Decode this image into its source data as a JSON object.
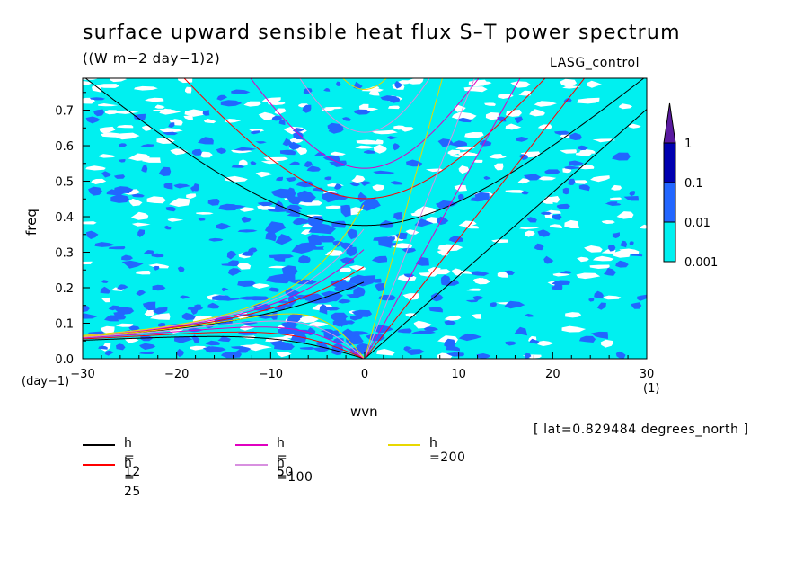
{
  "chart_data": {
    "type": "heatmap",
    "title": "surface upward sensible heat flux S–T power spectrum",
    "subtitle": "((W m−2 day−1)2)",
    "run_label": "LASG_control",
    "xlabel": "wvn",
    "ylabel": "freq",
    "x_unit": "(1)",
    "y_unit": "(day−1)",
    "xlim": [
      -30,
      30
    ],
    "ylim": [
      0,
      0.79
    ],
    "x_ticks": [
      -30,
      -20,
      -10,
      0,
      10,
      20,
      30
    ],
    "x_tick_labels": [
      "−30",
      "−20",
      "−10",
      "0",
      "10",
      "20",
      "30"
    ],
    "y_ticks": [
      0,
      0.1,
      0.2,
      0.3,
      0.4,
      0.5,
      0.6,
      0.7
    ],
    "y_tick_labels": [
      "0.0",
      "0.1",
      "0.2",
      "0.3",
      "0.4",
      "0.5",
      "0.6",
      "0.7"
    ],
    "colorbar": {
      "levels": [
        0.001,
        0.01,
        0.1,
        1
      ],
      "labels": [
        "0.001",
        "0.01",
        "0.1",
        "1"
      ],
      "colors": [
        "#ffffff",
        "#00f0f0",
        "#2266ff",
        "#0000b0",
        "#5a1aa0"
      ]
    },
    "dispersion_curves": [
      {
        "h": 12,
        "label": "h = 12",
        "color": "#000000"
      },
      {
        "h": 25,
        "label": "h = 25",
        "color": "#ff0000"
      },
      {
        "h": 50,
        "label": "h = 50",
        "color": "#e000c0"
      },
      {
        "h": 100,
        "label": "h =100",
        "color": "#d890e0"
      },
      {
        "h": 200,
        "label": "h =200",
        "color": "#e8d800"
      }
    ],
    "annotation": "[ lat=0.829484 degrees_north ]"
  }
}
